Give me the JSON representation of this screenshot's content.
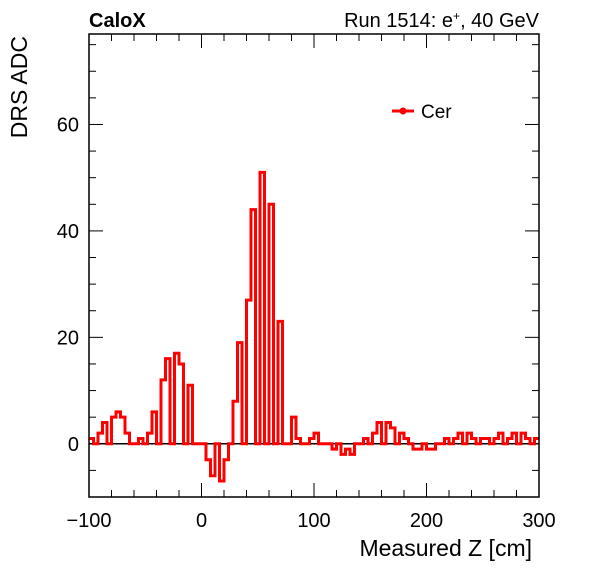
{
  "header": {
    "experiment": "CaloX",
    "run_prefix": "Run 1514: e",
    "run_sup": "+",
    "run_suffix": ", 40 GeV"
  },
  "chart_data": {
    "type": "line",
    "title": "",
    "xlabel": "Measured Z [cm]",
    "ylabel": "DRS ADC",
    "xlim": [
      -100,
      300
    ],
    "ylim": [
      -10,
      77
    ],
    "x_ticks": [
      -100,
      0,
      100,
      200,
      300
    ],
    "x_tick_labels": [
      "−100",
      "0",
      "100",
      "200",
      "300"
    ],
    "y_ticks": [
      0,
      20,
      40,
      60
    ],
    "y_tick_labels": [
      "0",
      "20",
      "40",
      "60"
    ],
    "zero_line": 0,
    "grid": false,
    "legend_position": "top-right",
    "bin_width": 4,
    "series": [
      {
        "name": "Cer",
        "color": "#ff0000",
        "style": "step-histogram",
        "x_start": -100,
        "values": [
          1,
          0,
          2,
          4,
          0,
          5,
          6,
          5,
          2,
          0,
          0,
          1,
          0,
          2,
          6,
          0,
          12,
          16,
          0,
          17,
          15,
          0,
          11,
          0,
          0,
          0,
          -3,
          -6,
          0,
          -7,
          -3,
          0,
          8,
          19,
          0,
          27,
          44,
          0,
          51,
          0,
          45,
          0,
          23,
          0,
          0,
          5,
          1,
          0,
          0,
          1,
          2,
          0,
          0,
          0,
          -1,
          0,
          -2,
          -1,
          -2,
          0,
          0,
          1,
          0,
          2,
          4,
          0,
          4,
          3,
          0,
          2,
          1,
          0,
          -1,
          -1,
          0,
          -1,
          -1,
          0,
          0,
          1,
          0,
          1,
          2,
          0,
          2,
          1,
          0,
          1,
          1,
          0,
          1,
          2,
          0,
          1,
          2,
          0,
          2,
          1,
          0,
          1
        ]
      }
    ]
  }
}
